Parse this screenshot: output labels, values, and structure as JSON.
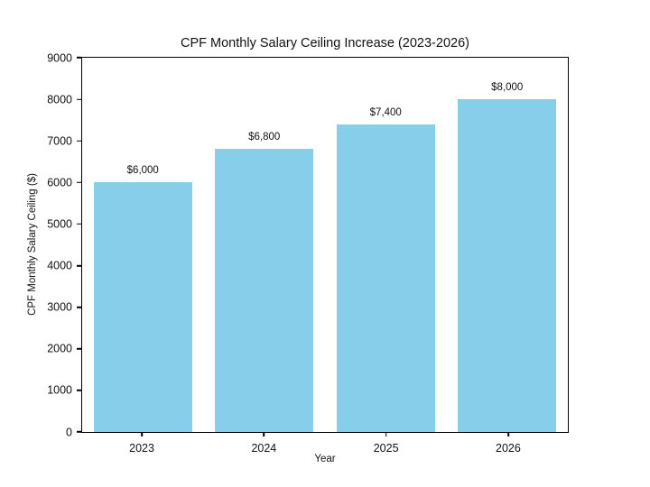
{
  "chart_data": {
    "type": "bar",
    "title": "CPF Monthly Salary Ceiling Increase (2023-2026)",
    "xlabel": "Year",
    "ylabel": "CPF Monthly Salary Ceiling ($)",
    "categories": [
      "2023",
      "2024",
      "2025",
      "2026"
    ],
    "values": [
      6000,
      6800,
      7400,
      8000
    ],
    "value_labels": [
      "$6,000",
      "$6,800",
      "$7,400",
      "$8,000"
    ],
    "ylim": [
      0,
      9000
    ],
    "ytick_step": 1000,
    "ytick_labels": [
      "0",
      "1000",
      "2000",
      "3000",
      "4000",
      "5000",
      "6000",
      "7000",
      "8000",
      "9000"
    ],
    "grid": false,
    "legend": "none",
    "bar_color": "#87CEEB",
    "axis_color": "#000000",
    "text_color": "#111111",
    "background": "#ffffff"
  }
}
